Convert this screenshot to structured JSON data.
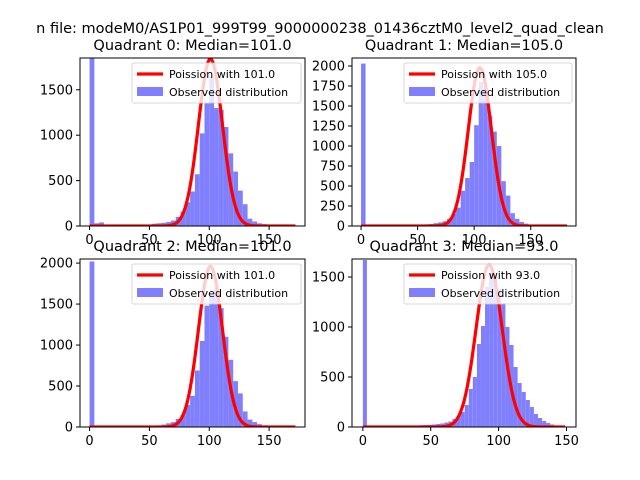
{
  "suptitle": "n file: modeM0/AS1P01_999T99_9000000238_01436cztM0_level2_quad_clean",
  "colors": {
    "bar": "#8080ff",
    "line": "#ff0000",
    "axis": "#000000",
    "background": "#ffffff"
  },
  "chart_data": [
    {
      "type": "bar",
      "title": "Quadrant 0: Median=101.0",
      "xlim": [
        -8,
        180
      ],
      "ylim": [
        0,
        1850
      ],
      "xticks": [
        0,
        50,
        100,
        150
      ],
      "yticks": [
        0,
        500,
        1000,
        1500
      ],
      "legend": {
        "position": "top-right",
        "entries": [
          "Poission with 101.0",
          "Observed distribution"
        ]
      },
      "poisson_mean": 101,
      "poisson_peak": 1840,
      "bin_width": 4,
      "bins": [
        0,
        4,
        8,
        12,
        16,
        20,
        24,
        28,
        32,
        36,
        40,
        44,
        48,
        52,
        56,
        60,
        64,
        68,
        72,
        76,
        80,
        84,
        88,
        92,
        96,
        100,
        104,
        108,
        112,
        116,
        120,
        124,
        128,
        132,
        136,
        140,
        144,
        148,
        152,
        156,
        160,
        164,
        168
      ],
      "counts": [
        1850,
        30,
        40,
        15,
        12,
        10,
        12,
        10,
        8,
        10,
        8,
        10,
        15,
        25,
        30,
        35,
        45,
        60,
        100,
        160,
        260,
        380,
        570,
        1020,
        1350,
        1640,
        1300,
        1280,
        1090,
        800,
        600,
        390,
        240,
        80,
        50,
        30,
        20,
        10,
        8,
        5,
        3,
        2,
        1
      ]
    },
    {
      "type": "bar",
      "title": "Quadrant 1: Median=105.0",
      "xlim": [
        -8,
        190
      ],
      "ylim": [
        0,
        2100
      ],
      "xticks": [
        0,
        50,
        100,
        150
      ],
      "yticks": [
        0,
        250,
        500,
        750,
        1000,
        1250,
        1500,
        1750,
        2000
      ],
      "legend": {
        "position": "top-right",
        "entries": [
          "Poission with 105.0",
          "Observed distribution"
        ]
      },
      "poisson_mean": 105,
      "poisson_peak": 1980,
      "bin_width": 4,
      "bins": [
        0,
        4,
        8,
        12,
        16,
        20,
        24,
        28,
        32,
        36,
        40,
        44,
        48,
        52,
        56,
        60,
        64,
        68,
        72,
        76,
        80,
        84,
        88,
        92,
        96,
        100,
        104,
        108,
        112,
        116,
        120,
        124,
        128,
        132,
        136,
        140,
        144,
        148,
        152,
        156,
        160,
        164,
        168,
        172,
        176
      ],
      "counts": [
        2030,
        10,
        8,
        10,
        8,
        10,
        8,
        10,
        8,
        10,
        8,
        10,
        10,
        15,
        20,
        25,
        35,
        45,
        60,
        90,
        150,
        230,
        440,
        600,
        800,
        1260,
        1800,
        1720,
        1380,
        1180,
        1000,
        560,
        380,
        160,
        90,
        50,
        30,
        18,
        10,
        8,
        5,
        4,
        3,
        2,
        1
      ]
    },
    {
      "type": "bar",
      "title": "Quadrant 2: Median=101.0",
      "xlim": [
        -8,
        180
      ],
      "ylim": [
        0,
        2050
      ],
      "xticks": [
        0,
        50,
        100,
        150
      ],
      "yticks": [
        0,
        500,
        1000,
        1500,
        2000
      ],
      "legend": {
        "position": "top-right",
        "entries": [
          "Poission with 101.0",
          "Observed distribution"
        ]
      },
      "poisson_mean": 101,
      "poisson_peak": 1960,
      "bin_width": 4,
      "bins": [
        0,
        4,
        8,
        12,
        16,
        20,
        24,
        28,
        32,
        36,
        40,
        44,
        48,
        52,
        56,
        60,
        64,
        68,
        72,
        76,
        80,
        84,
        88,
        92,
        96,
        100,
        104,
        108,
        112,
        116,
        120,
        124,
        128,
        132,
        136,
        140,
        144,
        148,
        152,
        156,
        160,
        164,
        168
      ],
      "counts": [
        2020,
        8,
        6,
        5,
        5,
        5,
        5,
        6,
        6,
        8,
        8,
        10,
        12,
        15,
        20,
        30,
        45,
        60,
        100,
        150,
        270,
        380,
        690,
        1050,
        1480,
        1620,
        1700,
        1450,
        1100,
        820,
        560,
        410,
        190,
        90,
        60,
        35,
        20,
        12,
        8,
        5,
        3,
        2,
        1
      ]
    },
    {
      "type": "bar",
      "title": "Quadrant 3: Median=93.0",
      "xlim": [
        -8,
        157
      ],
      "ylim": [
        0,
        1680
      ],
      "xticks": [
        0,
        50,
        100,
        150
      ],
      "yticks": [
        0,
        500,
        1000,
        1500
      ],
      "legend": {
        "position": "top-right",
        "entries": [
          "Poission with 93.0",
          "Observed distribution"
        ]
      },
      "poisson_mean": 93,
      "poisson_peak": 1620,
      "bin_width": 3,
      "bins": [
        0,
        3,
        6,
        9,
        12,
        15,
        18,
        21,
        24,
        27,
        30,
        33,
        36,
        39,
        42,
        45,
        48,
        51,
        54,
        57,
        60,
        63,
        66,
        69,
        72,
        75,
        78,
        81,
        84,
        87,
        90,
        93,
        96,
        99,
        102,
        105,
        108,
        111,
        114,
        117,
        120,
        123,
        126,
        129,
        132,
        135,
        138,
        141,
        144,
        147
      ],
      "counts": [
        1670,
        10,
        8,
        6,
        5,
        5,
        5,
        6,
        6,
        8,
        8,
        10,
        12,
        15,
        18,
        20,
        22,
        25,
        30,
        35,
        45,
        55,
        80,
        110,
        150,
        220,
        380,
        500,
        830,
        1010,
        1400,
        1540,
        1500,
        1380,
        1240,
        1000,
        820,
        600,
        440,
        350,
        270,
        200,
        130,
        90,
        60,
        40,
        25,
        15,
        8,
        4
      ]
    }
  ]
}
